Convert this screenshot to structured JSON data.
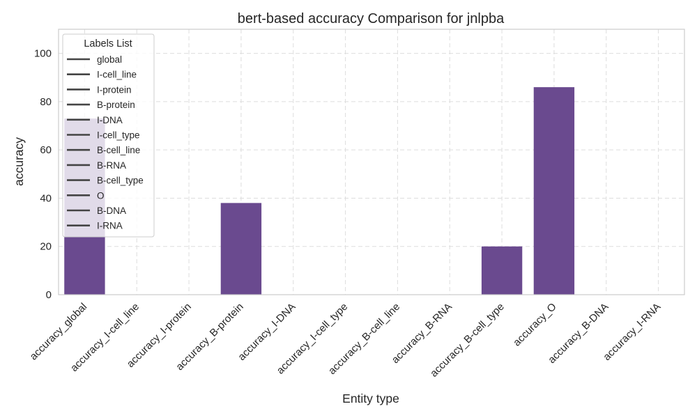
{
  "chart_data": {
    "type": "bar",
    "title": "bert-based  accuracy Comparison for jnlpba",
    "xlabel": "Entity type",
    "ylabel": "accuracy",
    "categories": [
      "accuracy_global",
      "accuracy_I-cell_line",
      "accuracy_I-protein",
      "accuracy_B-protein",
      "accuracy_I-DNA",
      "accuracy_I-cell_type",
      "accuracy_B-cell_line",
      "accuracy_B-RNA",
      "accuracy_B-cell_type",
      "accuracy_O",
      "accuracy_B-DNA",
      "accuracy_I-RNA"
    ],
    "values": [
      73,
      0,
      0,
      38,
      0,
      0,
      0,
      0,
      20,
      86,
      0,
      0
    ],
    "ylim": [
      0,
      110
    ],
    "yticks": [
      0,
      20,
      40,
      60,
      80,
      100
    ],
    "grid": true,
    "bar_color": "#6a4a8f",
    "legend": {
      "title": "Labels List",
      "placement": "top-left",
      "entries": [
        "global",
        "I-cell_line",
        "I-protein",
        "B-protein",
        "I-DNA",
        "I-cell_type",
        "B-cell_line",
        "B-RNA",
        "B-cell_type",
        "O",
        "B-DNA",
        "I-RNA"
      ]
    }
  }
}
